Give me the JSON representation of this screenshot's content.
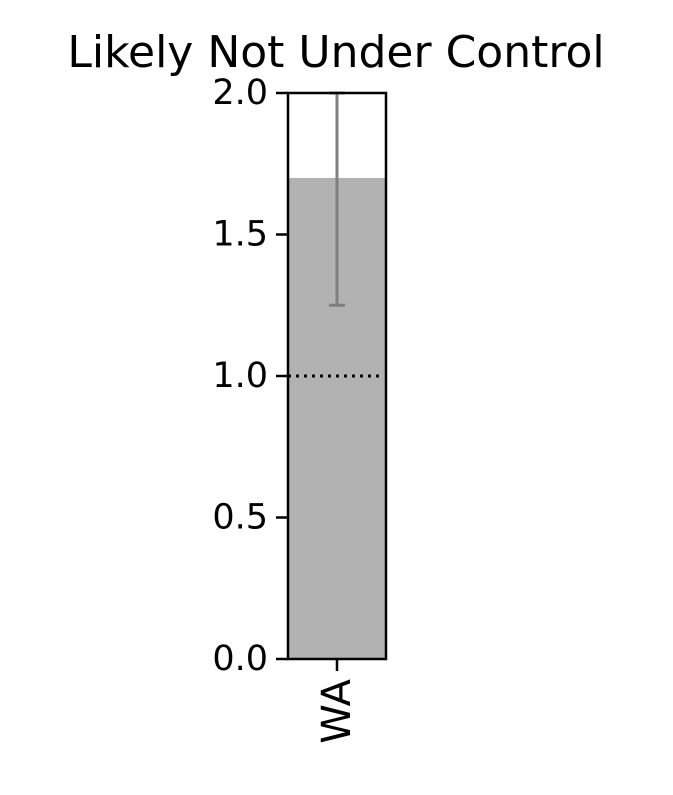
{
  "chart_data": {
    "type": "bar",
    "title": "Likely Not Under Control",
    "xlabel": "",
    "ylabel": "",
    "categories": [
      "WA"
    ],
    "series": [
      {
        "values": [
          1.7
        ],
        "error_low": [
          1.25
        ],
        "error_high": [
          2.0
        ]
      }
    ],
    "ylim": [
      0,
      2.0
    ],
    "yticks": [
      "0.0",
      "0.5",
      "1.0",
      "1.5",
      "2.0"
    ],
    "reference_line": {
      "y": 1.0,
      "style": "dotted"
    },
    "grid": false,
    "legend": "none",
    "colors": {
      "bar": "#b2b2b2",
      "error_bar": "#7f7f7f",
      "reference_line": "#000000",
      "axes": "#000000"
    }
  }
}
